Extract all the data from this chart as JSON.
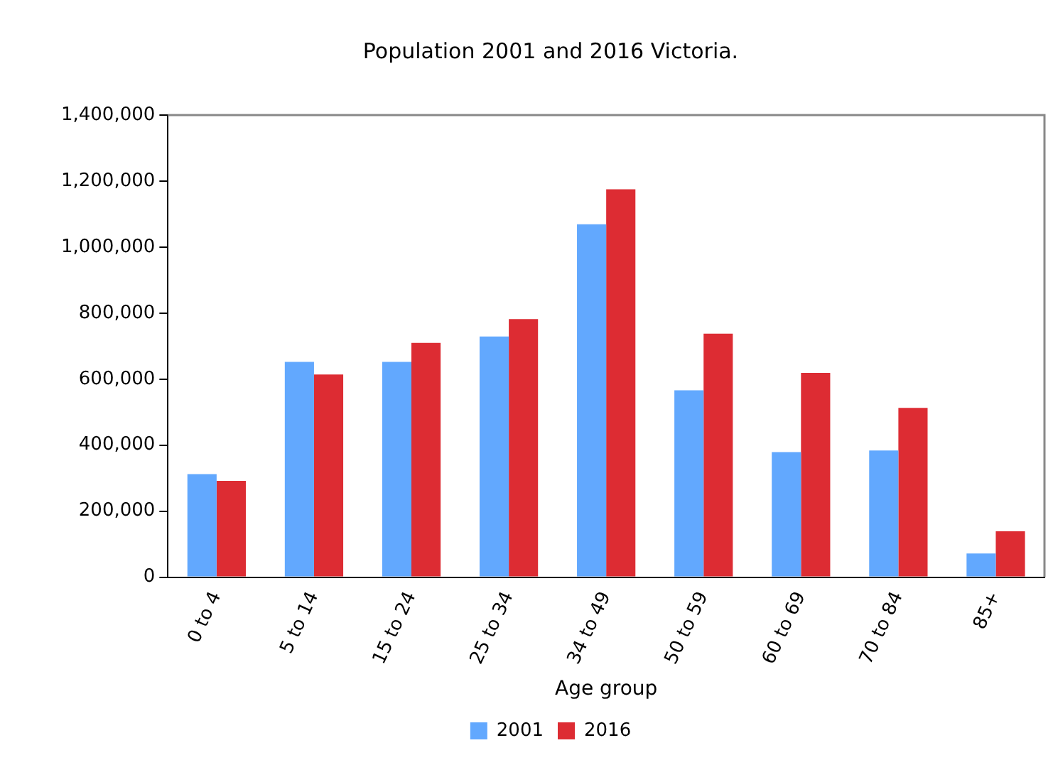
{
  "chart_data": {
    "type": "bar",
    "title": "Population 2001 and 2016 Victoria.",
    "xlabel": "Age group",
    "categories": [
      "0 to 4",
      "5 to 14",
      "15 to 24",
      "25 to 34",
      "34 to 49",
      "50 to 59",
      "60 to 69",
      "70 to 84",
      "85+"
    ],
    "series": [
      {
        "name": "2001",
        "color": "#62a8fe",
        "values": [
          312000,
          652000,
          652000,
          729000,
          1069000,
          566000,
          379000,
          384000,
          72000
        ]
      },
      {
        "name": "2016",
        "color": "#dd2c33",
        "values": [
          292000,
          614000,
          710000,
          782000,
          1175000,
          738000,
          619000,
          513000,
          139000
        ]
      }
    ],
    "ylim": [
      0,
      1400000
    ],
    "yticks": [
      {
        "value": 0,
        "label": "0"
      },
      {
        "value": 200000,
        "label": "200,000"
      },
      {
        "value": 400000,
        "label": "400,000"
      },
      {
        "value": 600000,
        "label": "600,000"
      },
      {
        "value": 800000,
        "label": "800,000"
      },
      {
        "value": 1000000,
        "label": "1,000,000"
      },
      {
        "value": 1200000,
        "label": "1,200,000"
      },
      {
        "value": 1400000,
        "label": "1,400,000"
      }
    ],
    "grid": false,
    "legend": "bottom"
  }
}
